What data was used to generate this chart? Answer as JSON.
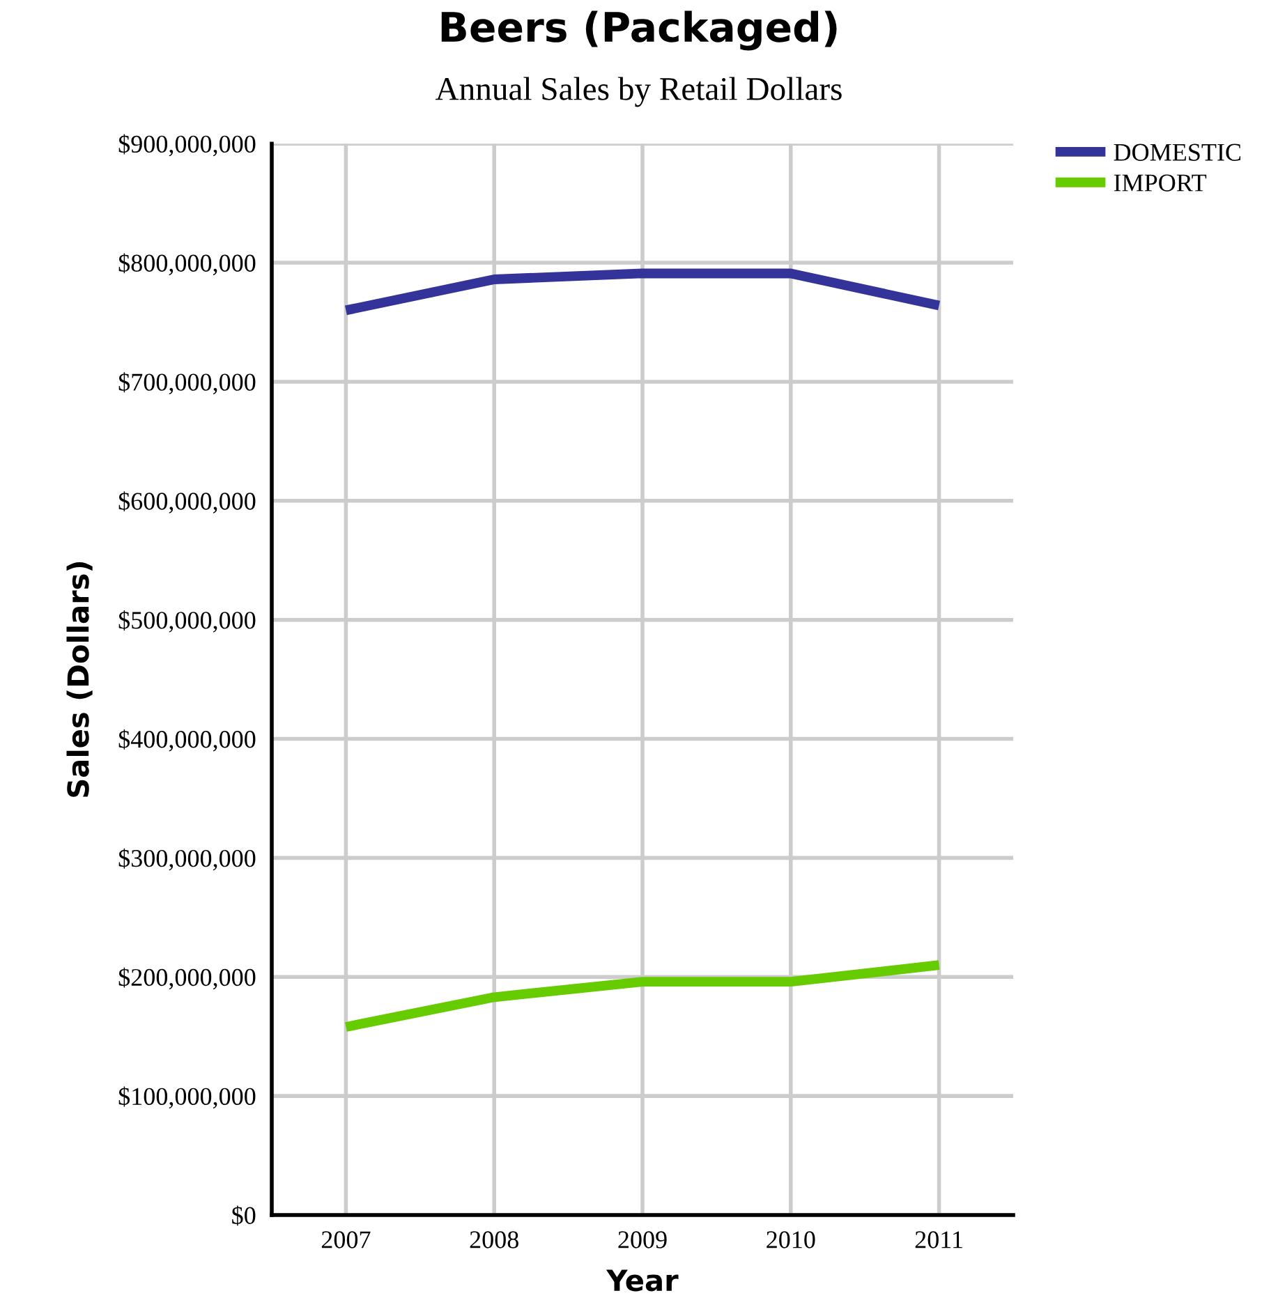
{
  "chart_data": {
    "type": "line",
    "title": "Beers (Packaged)",
    "subtitle": "Annual Sales by Retail Dollars",
    "xlabel": "Year",
    "ylabel": "Sales (Dollars)",
    "categories": [
      "2007",
      "2008",
      "2009",
      "2010",
      "2011"
    ],
    "series": [
      {
        "name": "DOMESTIC",
        "color": "#333399",
        "values": [
          760000000,
          786000000,
          791000000,
          791000000,
          764000000
        ]
      },
      {
        "name": "IMPORT",
        "color": "#66cc00",
        "values": [
          158000000,
          183000000,
          196000000,
          196000000,
          210000000
        ]
      }
    ],
    "ylim": [
      0,
      900000000
    ],
    "yticks": [
      {
        "value": 0,
        "label": "$0"
      },
      {
        "value": 100000000,
        "label": "$100,000,000"
      },
      {
        "value": 200000000,
        "label": "$200,000,000"
      },
      {
        "value": 300000000,
        "label": "$300,000,000"
      },
      {
        "value": 400000000,
        "label": "$400,000,000"
      },
      {
        "value": 500000000,
        "label": "$500,000,000"
      },
      {
        "value": 600000000,
        "label": "$600,000,000"
      },
      {
        "value": 700000000,
        "label": "$700,000,000"
      },
      {
        "value": 800000000,
        "label": "$800,000,000"
      },
      {
        "value": 900000000,
        "label": "$900,000,000"
      }
    ],
    "grid": true,
    "legend": "top right",
    "marker": "none",
    "line_style": "solid"
  }
}
